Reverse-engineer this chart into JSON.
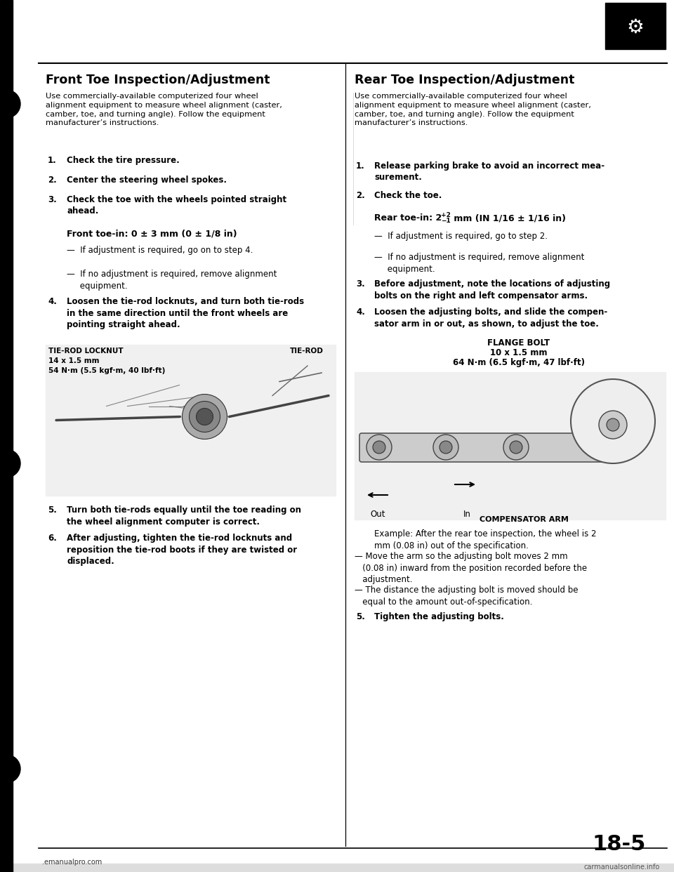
{
  "page_bg": "#ffffff",
  "page_number": "18-5",
  "left_title": "Front Toe Inspection/Adjustment",
  "right_title": "Rear Toe Inspection/Adjustment",
  "left_intro": "Use commercially-available computerized four wheel\nalignment equipment to measure wheel alignment (caster,\ncamber, toe, and turning angle). Follow the equipment\nmanufacturer’s instructions.",
  "right_intro": "Use commercially-available computerized four wheel\nalignment equipment to measure wheel alignment (caster,\ncamber, toe, and turning angle). Follow the equipment\nmanufacturer’s instructions.",
  "left_steps_123": [
    {
      "num": "1.",
      "text": "Check the tire pressure."
    },
    {
      "num": "2.",
      "text": "Center the steering wheel spokes."
    },
    {
      "num": "3.",
      "text": "Check the toe with the wheels pointed straight\nahead."
    }
  ],
  "left_spec": "Front toe-in: 0 ± 3 mm (0 ± 1/8 in)",
  "left_bullets": [
    "—  If adjustment is required, go on to step 4.",
    "—  If no adjustment is required, remove alignment\n     equipment."
  ],
  "left_step4_text": "Loosen the tie-rod locknuts, and turn both tie-rods\nin the same direction until the front wheels are\npointing straight ahead.",
  "left_img_lbl1_line1": "TIE-ROD LOCKNUT",
  "left_img_lbl1_line2": "14 x 1.5 mm",
  "left_img_lbl1_line3": "54 N·m (5.5 kgf·m, 40 lbf·ft)",
  "left_img_lbl2": "TIE-ROD",
  "left_step5_text": "Turn both tie-rods equally until the toe reading on\nthe wheel alignment computer is correct.",
  "left_step6_text": "After adjusting, tighten the tie-rod locknuts and\nreposition the tie-rod boots if they are twisted or\ndisplaced.",
  "right_steps_12": [
    {
      "num": "1.",
      "text": "Release parking brake to avoid an incorrect mea-\nsurement."
    },
    {
      "num": "2.",
      "text": "Check the toe."
    }
  ],
  "right_spec_pre": "Rear toe-in: 2 ",
  "right_spec_post": " mm (IN 1/16 ± 1/16 in)",
  "right_bullets": [
    "—  If adjustment is required, go to step 2.",
    "—  If no adjustment is required, remove alignment\n     equipment."
  ],
  "right_step3_text": "Before adjustment, note the locations of adjusting\nbolts on the right and left compensator arms.",
  "right_step4_text": "Loosen the adjusting bolts, and slide the compen-\nsator arm in or out, as shown, to adjust the toe.",
  "right_flange1": "FLANGE BOLT",
  "right_flange2": "10 x 1.5 mm",
  "right_flange3": "64 N·m (6.5 kgf·m, 47 lbf·ft)",
  "right_out": "Out",
  "right_in": "In",
  "right_comp_arm": "COMPENSATOR ARM",
  "right_example": "Example: After the rear toe inspection, the wheel is 2\nmm (0.08 in) out of the specification.",
  "right_bullet2a": "— Move the arm so the adjusting bolt moves 2 mm\n   (0.08 in) inward from the position recorded before the\n   adjustment.",
  "right_bullet2b": "— The distance the adjusting bolt is moved should be\n   equal to the amount out-of-specification.",
  "right_step5_text": "Tighten the adjusting bolts.",
  "footer_left": ".emanualpro.com",
  "footer_right": "carmanualsonline.info",
  "page_num": "18-5"
}
